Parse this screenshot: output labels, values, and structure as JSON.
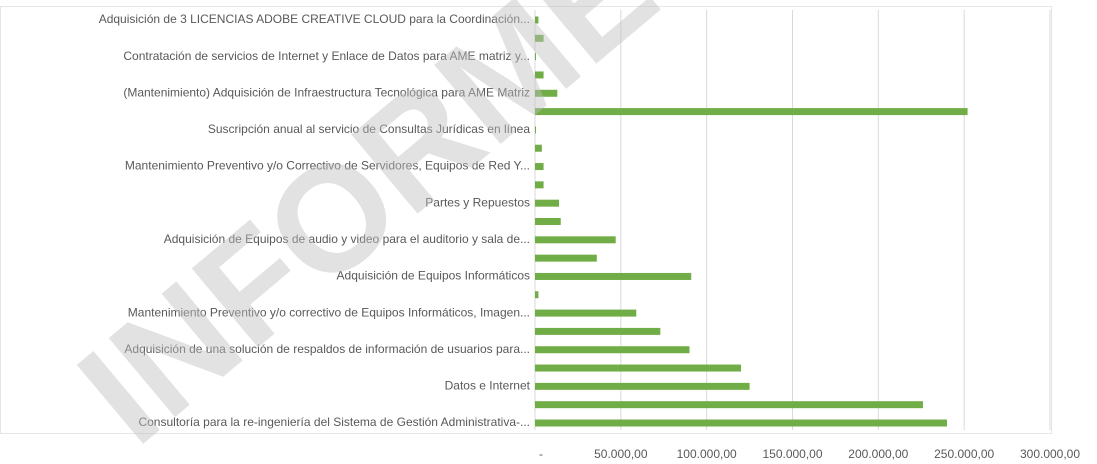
{
  "chart_data": {
    "type": "hbar",
    "watermark": "INFORME",
    "categories": [
      "Adquisición de 3 LICENCIAS ADOBE CREATIVE CLOUD para la Coordinación...",
      null,
      "Contratación de servicios de Internet y Enlace de Datos para AME matriz y...",
      null,
      "(Mantenimiento) Adquisición de Infraestructura Tecnológica para AME Matriz",
      null,
      "Suscripción anual al servicio de Consultas Jurídicas en línea",
      null,
      "Mantenimiento Preventivo y/o Correctivo de Servidores, Equipos de Red Y...",
      null,
      "Partes y Repuestos",
      null,
      "Adquisición de Equipos de audio y  video para el auditorio y sala de...",
      null,
      "Adquisición de Equipos Informáticos",
      null,
      "Mantenimiento Preventivo y/o correctivo de Equipos Informáticos, Imagen...",
      null,
      "Adquisición de una solución de respaldos de información de usuarios para...",
      null,
      "Datos e Internet",
      null,
      "Consultoría para la re-ingeniería del Sistema de Gestión Administrativa-..."
    ],
    "values": [
      2000,
      5000,
      500,
      5000,
      13000,
      252000,
      300,
      4000,
      5000,
      5000,
      14000,
      15000,
      47000,
      36000,
      91000,
      2000,
      59000,
      73000,
      90000,
      120000,
      125000,
      226000,
      240000
    ],
    "color": "#70ad47",
    "xlim": [
      0,
      300000
    ],
    "xticks": [
      {
        "value": 0,
        "label": "-"
      },
      {
        "value": 50000,
        "label": "50.000,00"
      },
      {
        "value": 100000,
        "label": "100.000,00"
      },
      {
        "value": 150000,
        "label": "150.000,00"
      },
      {
        "value": 200000,
        "label": "200.000,00"
      },
      {
        "value": 250000,
        "label": "250.000,00"
      },
      {
        "value": 300000,
        "label": "300.000,00"
      }
    ],
    "grid": true
  }
}
